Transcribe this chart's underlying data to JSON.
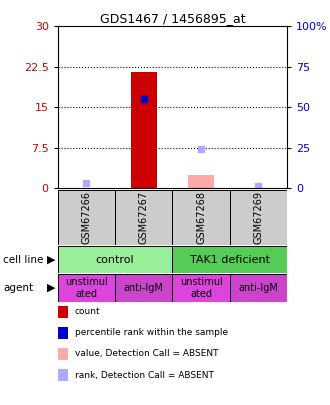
{
  "title": "GDS1467 / 1456895_at",
  "samples": [
    "GSM67266",
    "GSM67267",
    "GSM67268",
    "GSM67269"
  ],
  "x_positions": [
    0,
    1,
    2,
    3
  ],
  "count_values": [
    0,
    21.5,
    0,
    0
  ],
  "count_color": "#cc0000",
  "percentile_values": [
    0,
    16.5,
    0,
    0
  ],
  "percentile_color": "#0000cc",
  "absent_value_values": [
    0,
    0,
    2.5,
    0
  ],
  "absent_value_color": "#ffaaaa",
  "absent_rank_values": [
    1.0,
    0,
    7.2,
    0.5
  ],
  "absent_rank_color": "#aaaaff",
  "ylim_left": [
    0,
    30
  ],
  "ylim_right": [
    0,
    100
  ],
  "yticks_left": [
    0,
    7.5,
    15,
    22.5,
    30
  ],
  "yticks_right": [
    0,
    25,
    50,
    75,
    100
  ],
  "ytick_labels_left": [
    "0",
    "7.5",
    "15",
    "22.5",
    "30"
  ],
  "ytick_labels_right": [
    "0",
    "25",
    "50",
    "75",
    "100%"
  ],
  "bg_color": "#ffffff",
  "sample_bg": "#cccccc",
  "cell_line_color_control": "#99ee99",
  "cell_line_color_tak1": "#55cc55",
  "agent_color_unstim": "#dd44dd",
  "agent_color_anti": "#cc44cc",
  "bar_width": 0.45,
  "marker_size": 5,
  "left_label_color": "#cc0000",
  "right_label_color": "#0000cc",
  "legend_items": [
    [
      "#cc0000",
      "count"
    ],
    [
      "#0000cc",
      "percentile rank within the sample"
    ],
    [
      "#ffaaaa",
      "value, Detection Call = ABSENT"
    ],
    [
      "#aaaaff",
      "rank, Detection Call = ABSENT"
    ]
  ]
}
